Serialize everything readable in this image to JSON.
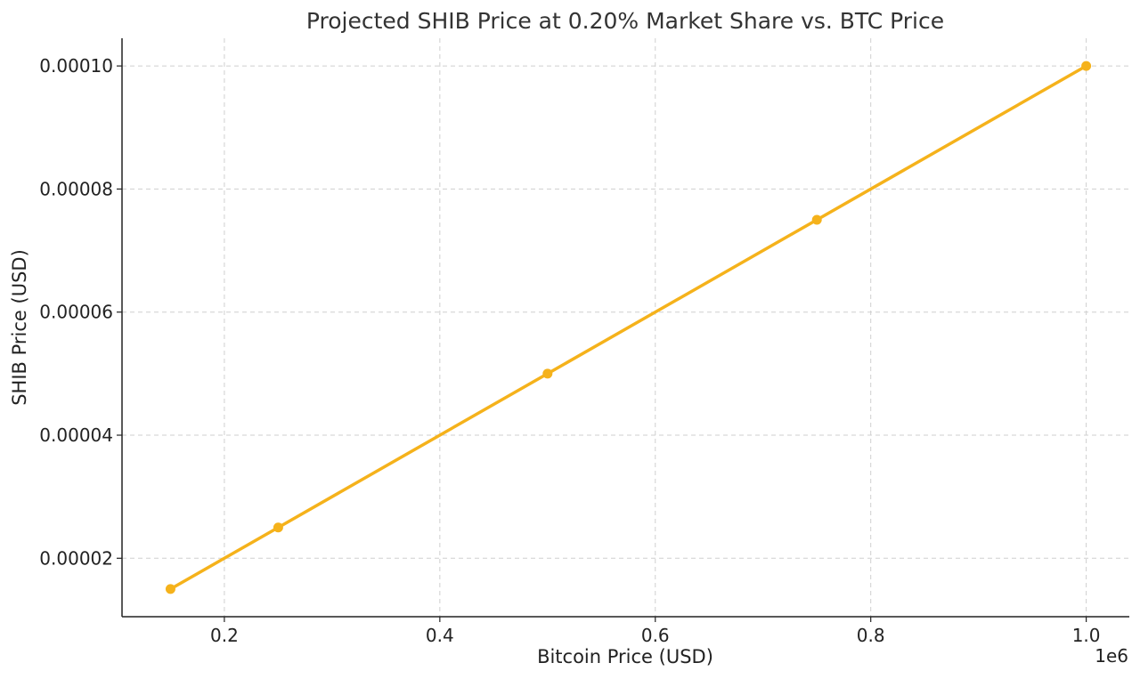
{
  "chart_data": {
    "type": "line",
    "title": "Projected SHIB Price at 0.20% Market Share vs. BTC Price",
    "xlabel": "Bitcoin Price (USD)",
    "ylabel": "SHIB Price (USD)",
    "x_offset_label": "1e6",
    "x_scale": 1000000,
    "xlim": [
      0.105,
      1.04
    ],
    "ylim": [
      1.05e-05,
      0.0001045
    ],
    "x_ticks": [
      0.2,
      0.4,
      0.6,
      0.8,
      1.0
    ],
    "x_tick_labels": [
      "0.2",
      "0.4",
      "0.6",
      "0.8",
      "1.0"
    ],
    "y_ticks": [
      2e-05,
      4e-05,
      6e-05,
      8e-05,
      0.0001
    ],
    "y_tick_labels": [
      "0.00002",
      "0.00004",
      "0.00006",
      "0.00008",
      "0.00010"
    ],
    "grid": true,
    "series": [
      {
        "color": "#f5b21b",
        "x": [
          150000,
          250000,
          500000,
          750000,
          1000000
        ],
        "y": [
          1.5e-05,
          2.5e-05,
          5e-05,
          7.5e-05,
          0.0001
        ]
      }
    ]
  }
}
